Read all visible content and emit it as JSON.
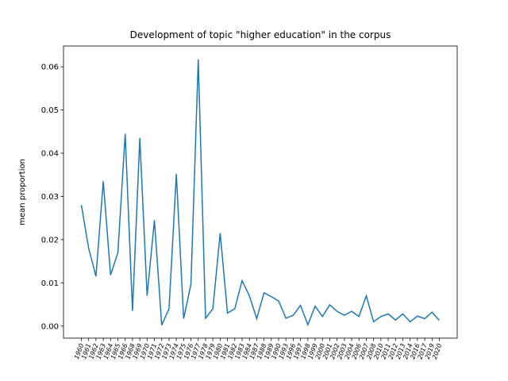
{
  "chart_data": {
    "type": "line",
    "title": "Development of topic \"higher education\" in the corpus",
    "y_label": "mean proportion",
    "categories": [
      "1960",
      "1961",
      "1962",
      "1963",
      "1964",
      "1965",
      "1966",
      "1968",
      "1969",
      "1970",
      "1971",
      "1972",
      "1973",
      "1974",
      "1975",
      "1976",
      "1977",
      "1978",
      "1979",
      "1980",
      "1981",
      "1982",
      "1983",
      "1984",
      "1987",
      "1988",
      "1989",
      "1990",
      "1993",
      "1996",
      "1997",
      "1998",
      "1999",
      "2000",
      "2001",
      "2002",
      "2003",
      "2004",
      "2006",
      "2007",
      "2008",
      "2010",
      "2011",
      "2012",
      "2013",
      "2014",
      "2016",
      "2017",
      "2019",
      "2020"
    ],
    "series": [
      {
        "name": "higher education",
        "color": "#1f77b4",
        "values": [
          0.028,
          0.018,
          0.0115,
          0.0335,
          0.0118,
          0.017,
          0.0445,
          0.0035,
          0.0435,
          0.007,
          0.0245,
          0.0002,
          0.004,
          0.0352,
          0.0017,
          0.0097,
          0.0617,
          0.0018,
          0.004,
          0.0215,
          0.003,
          0.004,
          0.0105,
          0.007,
          0.0017,
          0.0077,
          0.0068,
          0.0058,
          0.0018,
          0.0025,
          0.0048,
          0.0003,
          0.0046,
          0.0022,
          0.0049,
          0.0034,
          0.0025,
          0.0034,
          0.0022,
          0.007,
          0.001,
          0.0022,
          0.0028,
          0.0014,
          0.0028,
          0.001,
          0.0023,
          0.0017,
          0.0032,
          0.0013
        ]
      }
    ],
    "ylim": [
      -0.0028,
      0.0648
    ],
    "yticks": [
      {
        "value": 0,
        "label": "0.00"
      },
      {
        "value": 0.01,
        "label": "0.01"
      },
      {
        "value": 0.02,
        "label": "0.02"
      },
      {
        "value": 0.03,
        "label": "0.03"
      },
      {
        "value": 0.04,
        "label": "0.04"
      },
      {
        "value": 0.05,
        "label": "0.05"
      },
      {
        "value": 0.06,
        "label": "0.06"
      }
    ]
  }
}
